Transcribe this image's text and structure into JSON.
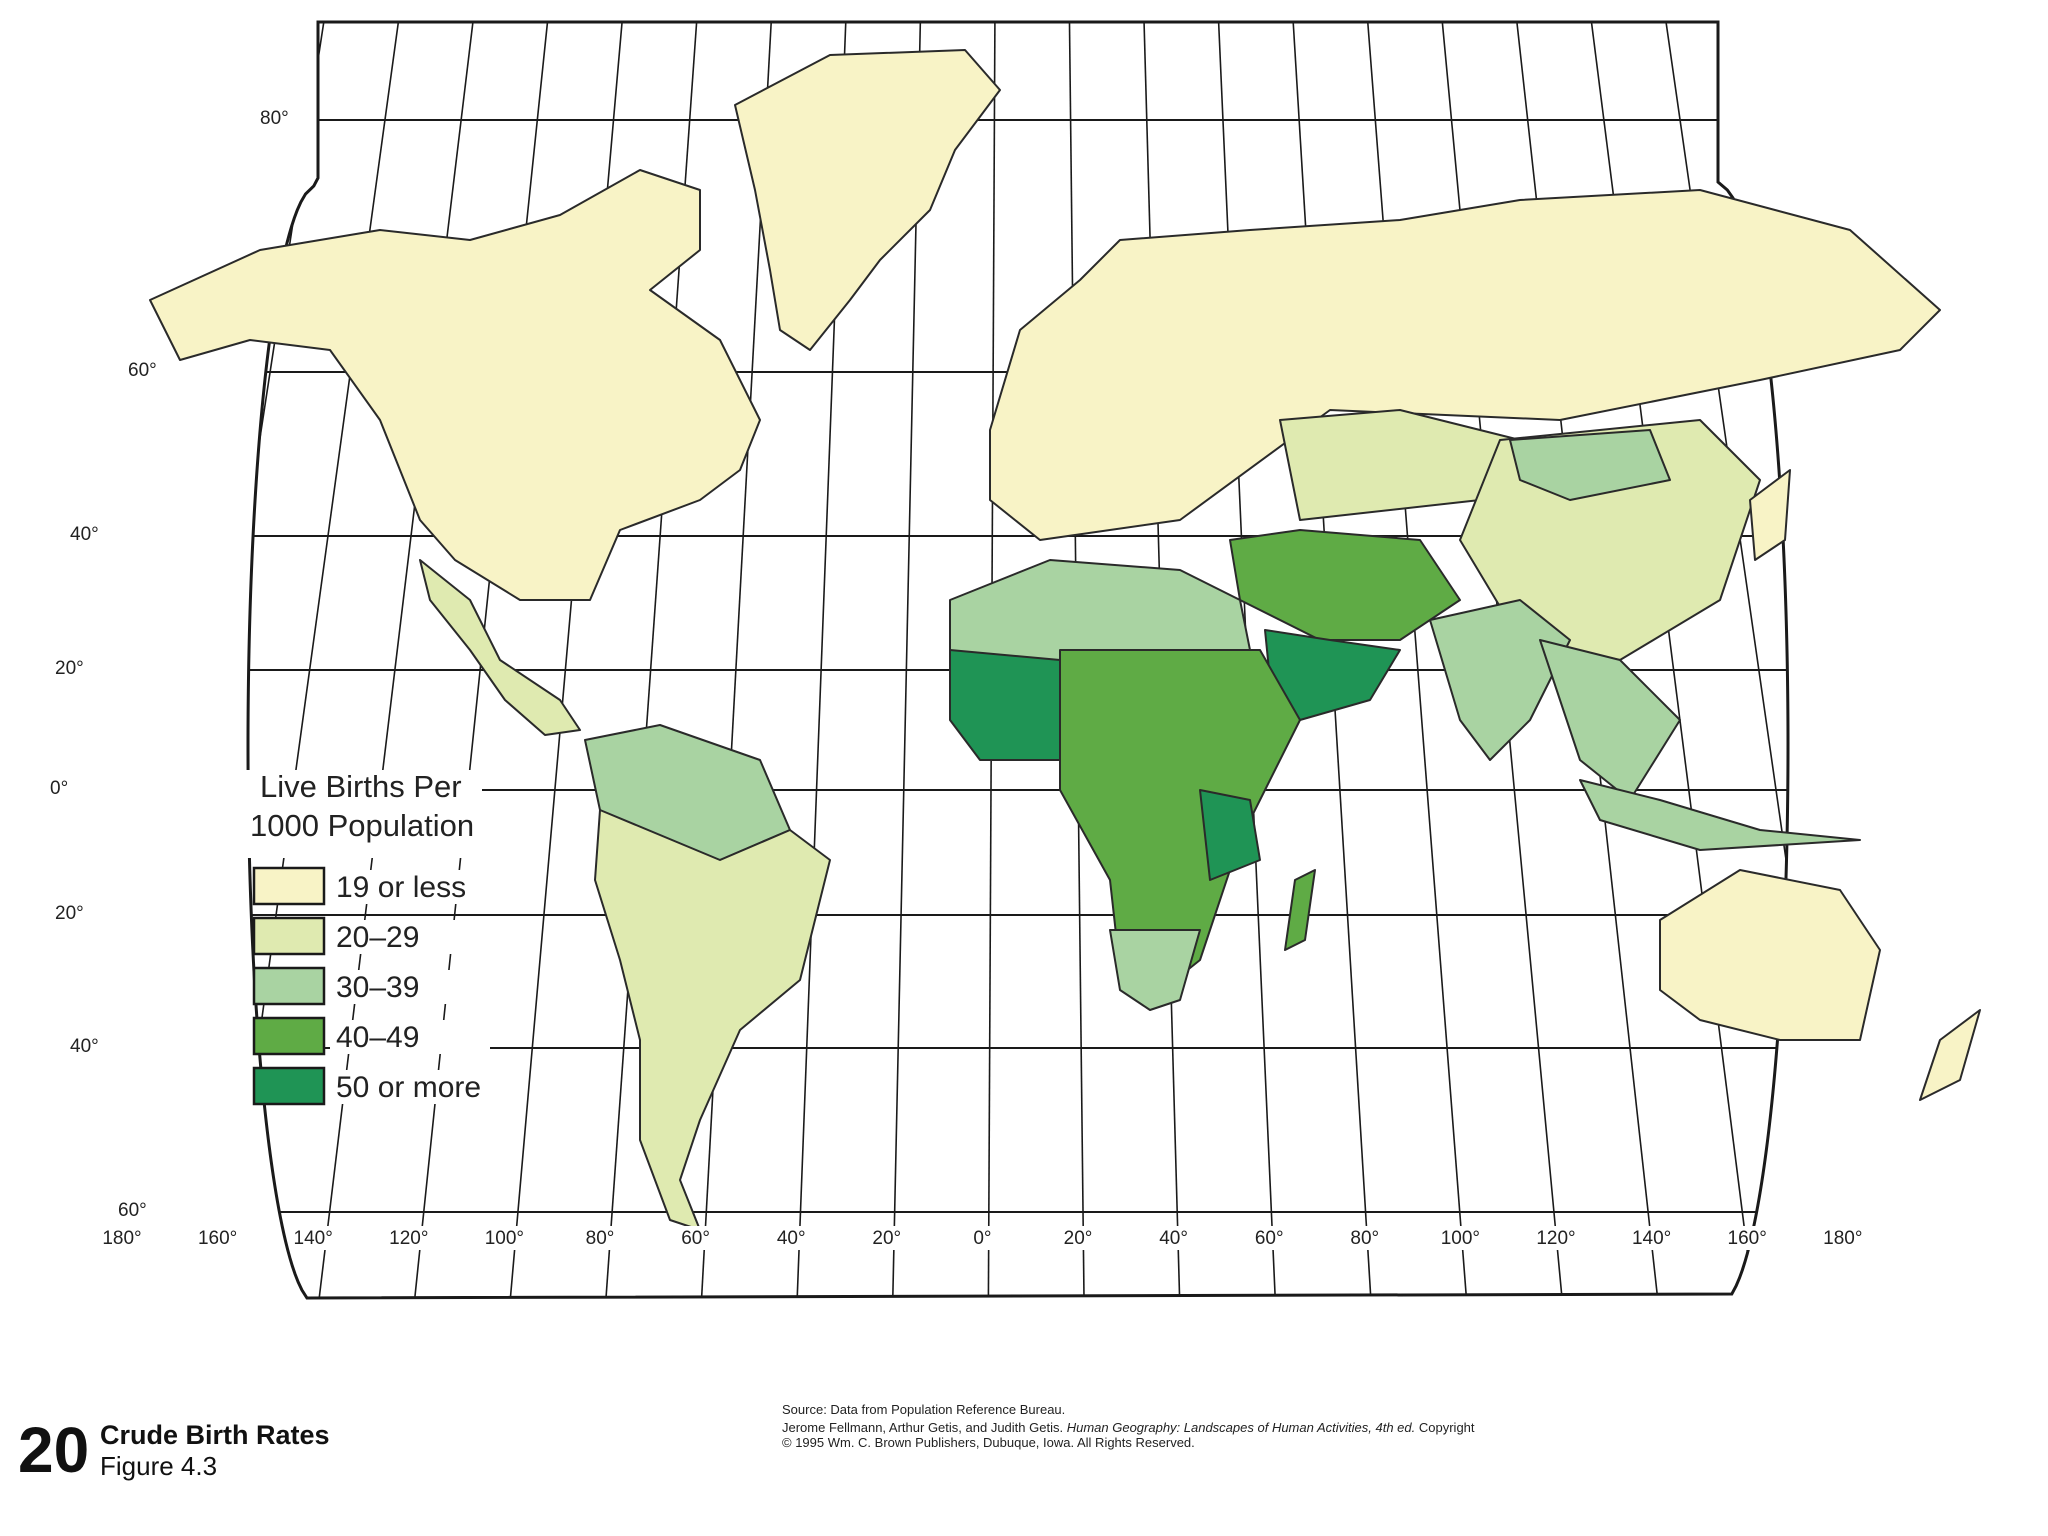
{
  "map": {
    "latitude_labels": [
      "80°",
      "60°",
      "40°",
      "20°",
      "0°",
      "20°",
      "40°",
      "60°"
    ],
    "longitude_labels": [
      "180°",
      "160°",
      "140°",
      "120°",
      "100°",
      "80°",
      "60°",
      "40°",
      "20°",
      "0°",
      "20°",
      "40°",
      "60°",
      "80°",
      "100°",
      "120°",
      "140°",
      "160°",
      "180°"
    ],
    "colors": {
      "ocean": "#ffffff",
      "graticule": "#1a1a1a",
      "class_1": "#f8f3c6",
      "class_2": "#dfeab0",
      "class_3": "#a9d3a2",
      "class_4": "#5fab45",
      "class_5": "#1f9455"
    },
    "regions": [
      {
        "name": "North America",
        "class": 1
      },
      {
        "name": "Greenland",
        "class": 1
      },
      {
        "name": "Mexico and Central America",
        "class": 2
      },
      {
        "name": "Northern South America",
        "class": 3
      },
      {
        "name": "South America",
        "class": 2
      },
      {
        "name": "Europe and Russia",
        "class": 1
      },
      {
        "name": "Central Asia",
        "class": 2
      },
      {
        "name": "China",
        "class": 2
      },
      {
        "name": "Mongolia",
        "class": 3
      },
      {
        "name": "Middle East",
        "class": 4
      },
      {
        "name": "Arabian Peninsula",
        "class": 5
      },
      {
        "name": "India",
        "class": 3
      },
      {
        "name": "Southeast Asia",
        "class": 3
      },
      {
        "name": "North Africa",
        "class": 3
      },
      {
        "name": "West Africa",
        "class": 5
      },
      {
        "name": "Sub-Saharan Africa",
        "class": 4
      },
      {
        "name": "East Africa",
        "class": 5
      },
      {
        "name": "Southern Africa",
        "class": 3
      },
      {
        "name": "Madagascar",
        "class": 4
      },
      {
        "name": "Indonesia",
        "class": 3
      },
      {
        "name": "Australia",
        "class": 1
      },
      {
        "name": "New Zealand",
        "class": 1
      },
      {
        "name": "Japan",
        "class": 1
      }
    ]
  },
  "legend": {
    "title_line1": "Live Births Per",
    "title_line2": "1000 Population",
    "items": [
      {
        "label": "19 or less",
        "color": "#f8f3c6"
      },
      {
        "label": "20–29",
        "color": "#dfeab0"
      },
      {
        "label": "30–39",
        "color": "#a9d3a2"
      },
      {
        "label": "40–49",
        "color": "#5fab45"
      },
      {
        "label": "50 or more",
        "color": "#1f9455"
      }
    ]
  },
  "footer": {
    "number": "20",
    "title": "Crude Birth Rates",
    "subtitle": "Figure 4.3"
  },
  "credits": {
    "source": "Source: Data from Population Reference Bureau.",
    "authors": "Jerome Fellmann, Arthur Getis, and Judith Getis.",
    "book_title": "Human Geography: Landscapes of Human Activities, 4th ed.",
    "copyright": "Copyright © 1995 Wm. C. Brown Publishers, Dubuque, Iowa. All Rights Reserved."
  }
}
